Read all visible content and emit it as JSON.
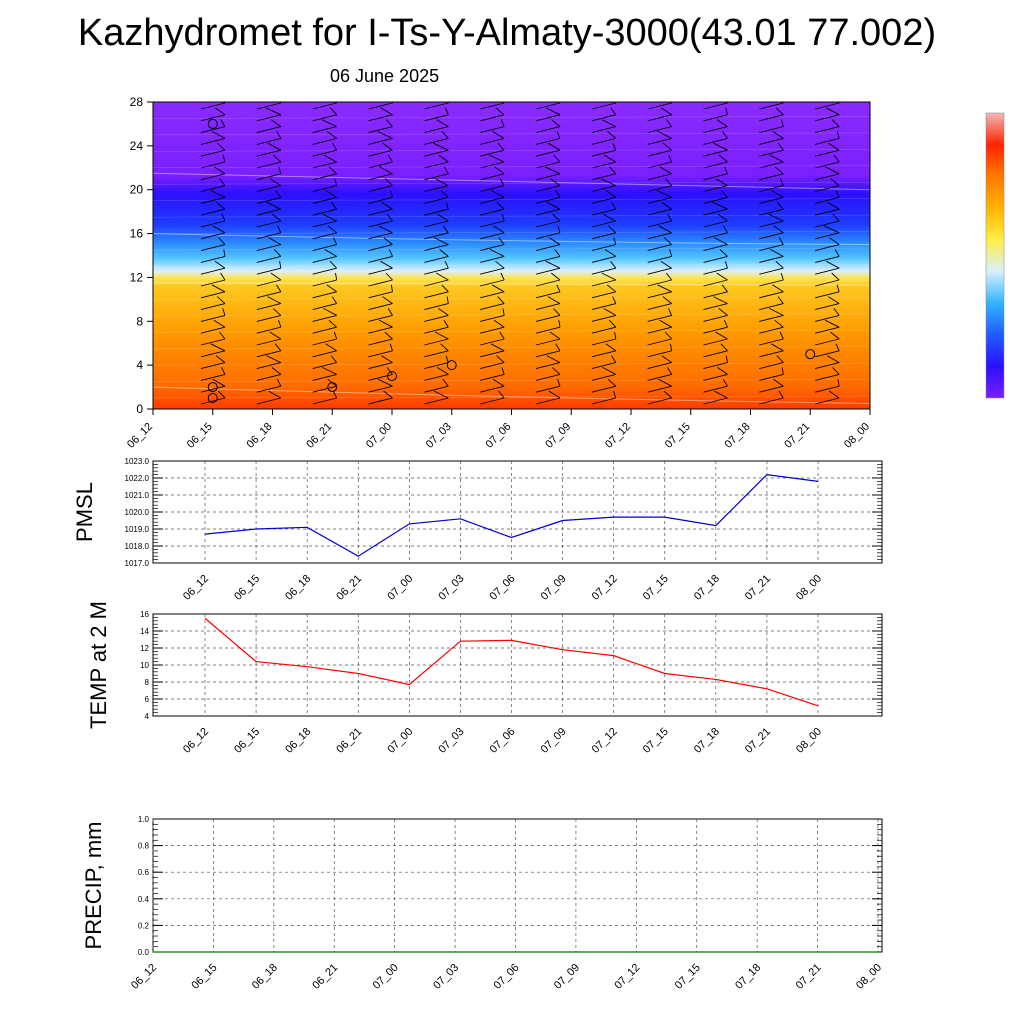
{
  "title": "Kazhydromet for I-Ts-Y-Almaty-3000(43.01 77.002)",
  "subtitle": "06 June 2025",
  "time_labels": [
    "06_12",
    "06_15",
    "06_18",
    "06_21",
    "07_00",
    "07_03",
    "07_06",
    "07_09",
    "07_12",
    "07_15",
    "07_18",
    "07_21",
    "08_00"
  ],
  "chart_data": [
    {
      "id": "cross_section",
      "type": "heatmap",
      "title": "",
      "xlabel": "",
      "ylabel": "",
      "x": [
        "06_12",
        "06_15",
        "06_18",
        "06_21",
        "07_00",
        "07_03",
        "07_06",
        "07_09",
        "07_12",
        "07_15",
        "07_18",
        "07_21",
        "08_00"
      ],
      "ylim": [
        0,
        28
      ],
      "yticks": [
        0,
        4,
        8,
        12,
        16,
        20,
        24,
        28
      ],
      "colorbar": [
        "#7a1fff",
        "#2a10ff",
        "#1f5cff",
        "#33b4ff",
        "#d8f0ff",
        "#ffee44",
        "#ffb300",
        "#ff7a00",
        "#ff2200",
        "#f4b8b8"
      ],
      "band_boundaries": [
        {
          "level": "purple_to_blue",
          "y_left": 21.5,
          "y_mid": 20.8,
          "y_right": 20.0
        },
        {
          "level": "blue_to_cyan",
          "y_left": 16.0,
          "y_mid": 15.2,
          "y_right": 15.0
        },
        {
          "level": "cyan_to_yellow",
          "y_left": 11.5,
          "y_mid": 11.4,
          "y_right": 11.3
        },
        {
          "level": "orange_to_red",
          "y_left": 2.0,
          "y_mid": 1.0,
          "y_right": 0.5
        }
      ],
      "calm_markers": [
        {
          "x": "06_15",
          "y": 26
        },
        {
          "x": "06_15",
          "y": 2
        },
        {
          "x": "06_15",
          "y": 1
        },
        {
          "x": "06_21",
          "y": 2
        },
        {
          "x": "07_00",
          "y": 3
        },
        {
          "x": "07_03",
          "y": 4
        },
        {
          "x": "07_21",
          "y": 5
        }
      ],
      "wind_barbs": "present"
    },
    {
      "id": "pmsl",
      "type": "line",
      "ylabel": "PMSL",
      "x": [
        "06_12",
        "06_15",
        "06_18",
        "06_21",
        "07_00",
        "07_03",
        "07_06",
        "07_09",
        "07_12",
        "07_15",
        "07_18",
        "07_21",
        "08_00"
      ],
      "series": [
        {
          "values": [
            1018.7,
            1019.0,
            1019.1,
            1017.4,
            1019.3,
            1019.6,
            1018.5,
            1019.5,
            1019.7,
            1019.7,
            1019.2,
            1022.2,
            1021.8
          ],
          "color": "#0000cc"
        }
      ],
      "ylim": [
        1017.0,
        1023.0
      ],
      "yticks": [
        "1017.0",
        "1018.0",
        "1019.0",
        "1020.0",
        "1021.0",
        "1022.0",
        "1023.0"
      ],
      "grid": true
    },
    {
      "id": "temp2m",
      "type": "line",
      "ylabel": "TEMP at 2 M",
      "x": [
        "06_12",
        "06_15",
        "06_18",
        "06_21",
        "07_00",
        "07_03",
        "07_06",
        "07_09",
        "07_12",
        "07_15",
        "07_18",
        "07_21",
        "08_00"
      ],
      "series": [
        {
          "values": [
            15.5,
            10.4,
            9.8,
            9.0,
            7.7,
            12.8,
            12.9,
            11.8,
            11.1,
            9.0,
            8.3,
            7.2,
            5.2
          ],
          "color": "#ff0000"
        }
      ],
      "ylim": [
        4,
        16
      ],
      "yticks": [
        "4",
        "6",
        "8",
        "10",
        "12",
        "14",
        "16"
      ],
      "grid": true
    },
    {
      "id": "precip",
      "type": "line",
      "ylabel": "PRECIP, mm",
      "x": [
        "06_12",
        "06_15",
        "06_18",
        "06_21",
        "07_00",
        "07_03",
        "07_06",
        "07_09",
        "07_12",
        "07_15",
        "07_18",
        "07_21",
        "08_00"
      ],
      "series": [
        {
          "values": [
            0,
            0,
            0,
            0,
            0,
            0,
            0,
            0,
            0,
            0,
            0,
            0,
            0
          ],
          "color": "#007700"
        }
      ],
      "ylim": [
        0.0,
        1.0
      ],
      "yticks": [
        "0.0",
        "0.2",
        "0.4",
        "0.6",
        "0.8",
        "1.0"
      ],
      "grid": true
    }
  ]
}
